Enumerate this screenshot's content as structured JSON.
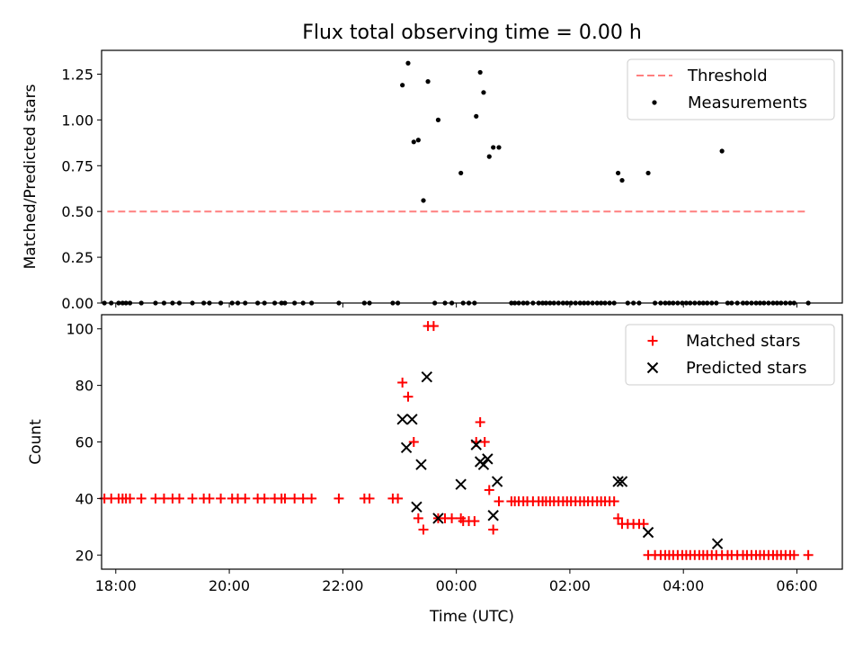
{
  "chart_data": [
    {
      "type": "scatter",
      "title": "Flux total observing time = 0.00 h",
      "xlabel": "",
      "ylabel": "Matched/Predicted stars",
      "xlim": [
        17.75,
        30.8
      ],
      "ylim": [
        0,
        1.38
      ],
      "yticks": [
        0,
        0.25,
        0.5,
        0.75,
        1.0,
        1.25
      ],
      "ytick_labels": [
        "0.00",
        "0.25",
        "0.50",
        "0.75",
        "1.00",
        "1.25"
      ],
      "legend": {
        "position": "top-right",
        "entries": [
          "Threshold",
          "Measurements"
        ]
      },
      "threshold": {
        "name": "Threshold",
        "value": 0.5,
        "x_range": [
          17.85,
          30.2
        ],
        "color": "#ff7f7f"
      },
      "series": [
        {
          "name": "Measurements",
          "color": "#000000",
          "points": [
            [
              17.8,
              0
            ],
            [
              17.92,
              0
            ],
            [
              18.05,
              0
            ],
            [
              18.12,
              0
            ],
            [
              18.18,
              0
            ],
            [
              18.25,
              0
            ],
            [
              18.45,
              0
            ],
            [
              18.7,
              0
            ],
            [
              18.85,
              0
            ],
            [
              19.0,
              0
            ],
            [
              19.12,
              0
            ],
            [
              19.35,
              0
            ],
            [
              19.55,
              0
            ],
            [
              19.65,
              0
            ],
            [
              19.85,
              0
            ],
            [
              20.05,
              0
            ],
            [
              20.15,
              0
            ],
            [
              20.28,
              0
            ],
            [
              20.5,
              0
            ],
            [
              20.62,
              0
            ],
            [
              20.8,
              0
            ],
            [
              20.92,
              0
            ],
            [
              20.98,
              0
            ],
            [
              21.15,
              0
            ],
            [
              21.3,
              0
            ],
            [
              21.45,
              0
            ],
            [
              21.93,
              0
            ],
            [
              22.38,
              0
            ],
            [
              22.47,
              0
            ],
            [
              22.88,
              0
            ],
            [
              22.97,
              0
            ],
            [
              23.05,
              1.19
            ],
            [
              23.15,
              1.31
            ],
            [
              23.25,
              0.88
            ],
            [
              23.33,
              0.89
            ],
            [
              23.42,
              0.56
            ],
            [
              23.5,
              1.21
            ],
            [
              23.62,
              0
            ],
            [
              23.68,
              1.0
            ],
            [
              23.8,
              0
            ],
            [
              23.92,
              0
            ],
            [
              24.08,
              0.71
            ],
            [
              24.12,
              0
            ],
            [
              24.22,
              0
            ],
            [
              24.32,
              0
            ],
            [
              24.35,
              1.02
            ],
            [
              24.42,
              1.26
            ],
            [
              24.48,
              1.15
            ],
            [
              24.58,
              0.8
            ],
            [
              24.65,
              0.85
            ],
            [
              24.75,
              0.85
            ],
            [
              24.97,
              0
            ],
            [
              25.03,
              0
            ],
            [
              25.1,
              0
            ],
            [
              25.18,
              0
            ],
            [
              25.25,
              0
            ],
            [
              25.35,
              0
            ],
            [
              25.45,
              0
            ],
            [
              25.52,
              0
            ],
            [
              25.58,
              0
            ],
            [
              25.65,
              0
            ],
            [
              25.72,
              0
            ],
            [
              25.8,
              0
            ],
            [
              25.88,
              0
            ],
            [
              25.95,
              0
            ],
            [
              26.02,
              0
            ],
            [
              26.1,
              0
            ],
            [
              26.18,
              0
            ],
            [
              26.25,
              0
            ],
            [
              26.32,
              0
            ],
            [
              26.4,
              0
            ],
            [
              26.48,
              0
            ],
            [
              26.55,
              0
            ],
            [
              26.62,
              0
            ],
            [
              26.7,
              0
            ],
            [
              26.78,
              0
            ],
            [
              26.85,
              0.71
            ],
            [
              26.92,
              0.67
            ],
            [
              27.02,
              0
            ],
            [
              27.12,
              0
            ],
            [
              27.22,
              0
            ],
            [
              27.38,
              0.71
            ],
            [
              27.5,
              0
            ],
            [
              27.6,
              0
            ],
            [
              27.68,
              0
            ],
            [
              27.75,
              0
            ],
            [
              27.82,
              0
            ],
            [
              27.9,
              0
            ],
            [
              27.98,
              0
            ],
            [
              28.05,
              0
            ],
            [
              28.12,
              0
            ],
            [
              28.2,
              0
            ],
            [
              28.28,
              0
            ],
            [
              28.35,
              0
            ],
            [
              28.42,
              0
            ],
            [
              28.5,
              0
            ],
            [
              28.58,
              0
            ],
            [
              28.68,
              0.83
            ],
            [
              28.78,
              0
            ],
            [
              28.85,
              0
            ],
            [
              28.95,
              0
            ],
            [
              29.05,
              0
            ],
            [
              29.12,
              0
            ],
            [
              29.2,
              0
            ],
            [
              29.28,
              0
            ],
            [
              29.35,
              0
            ],
            [
              29.42,
              0
            ],
            [
              29.5,
              0
            ],
            [
              29.58,
              0
            ],
            [
              29.65,
              0
            ],
            [
              29.72,
              0
            ],
            [
              29.8,
              0
            ],
            [
              29.88,
              0
            ],
            [
              29.95,
              0
            ],
            [
              30.2,
              0
            ]
          ]
        }
      ]
    },
    {
      "type": "scatter",
      "title": "",
      "xlabel": "Time (UTC)",
      "ylabel": "Count",
      "xlim": [
        17.75,
        30.8
      ],
      "ylim": [
        15,
        105
      ],
      "xticks": [
        18,
        20,
        22,
        24,
        26,
        28,
        30
      ],
      "xtick_labels": [
        "18:00",
        "20:00",
        "22:00",
        "00:00",
        "02:00",
        "04:00",
        "06:00"
      ],
      "yticks": [
        20,
        40,
        60,
        80,
        100
      ],
      "ytick_labels": [
        "20",
        "40",
        "60",
        "80",
        "100"
      ],
      "legend": {
        "position": "top-right",
        "entries": [
          "Matched stars",
          "Predicted stars"
        ]
      },
      "series": [
        {
          "name": "Matched stars",
          "marker": "plus",
          "color": "#ff0000",
          "points": [
            [
              17.8,
              40
            ],
            [
              17.92,
              40
            ],
            [
              18.05,
              40
            ],
            [
              18.12,
              40
            ],
            [
              18.18,
              40
            ],
            [
              18.25,
              40
            ],
            [
              18.45,
              40
            ],
            [
              18.7,
              40
            ],
            [
              18.85,
              40
            ],
            [
              19.0,
              40
            ],
            [
              19.12,
              40
            ],
            [
              19.35,
              40
            ],
            [
              19.55,
              40
            ],
            [
              19.65,
              40
            ],
            [
              19.85,
              40
            ],
            [
              20.05,
              40
            ],
            [
              20.15,
              40
            ],
            [
              20.28,
              40
            ],
            [
              20.5,
              40
            ],
            [
              20.62,
              40
            ],
            [
              20.8,
              40
            ],
            [
              20.92,
              40
            ],
            [
              20.98,
              40
            ],
            [
              21.15,
              40
            ],
            [
              21.3,
              40
            ],
            [
              21.45,
              40
            ],
            [
              21.93,
              40
            ],
            [
              22.38,
              40
            ],
            [
              22.47,
              40
            ],
            [
              22.88,
              40
            ],
            [
              22.97,
              40
            ],
            [
              23.05,
              81
            ],
            [
              23.15,
              76
            ],
            [
              23.25,
              60
            ],
            [
              23.33,
              33
            ],
            [
              23.42,
              29
            ],
            [
              23.5,
              101
            ],
            [
              23.6,
              101
            ],
            [
              23.68,
              33
            ],
            [
              23.8,
              33
            ],
            [
              23.92,
              33
            ],
            [
              24.08,
              33
            ],
            [
              24.12,
              32
            ],
            [
              24.22,
              32
            ],
            [
              24.32,
              32
            ],
            [
              24.35,
              60
            ],
            [
              24.42,
              67
            ],
            [
              24.5,
              60
            ],
            [
              24.58,
              43
            ],
            [
              24.65,
              29
            ],
            [
              24.75,
              39
            ],
            [
              24.97,
              39
            ],
            [
              25.03,
              39
            ],
            [
              25.1,
              39
            ],
            [
              25.18,
              39
            ],
            [
              25.25,
              39
            ],
            [
              25.35,
              39
            ],
            [
              25.45,
              39
            ],
            [
              25.52,
              39
            ],
            [
              25.58,
              39
            ],
            [
              25.65,
              39
            ],
            [
              25.72,
              39
            ],
            [
              25.8,
              39
            ],
            [
              25.88,
              39
            ],
            [
              25.95,
              39
            ],
            [
              26.02,
              39
            ],
            [
              26.1,
              39
            ],
            [
              26.18,
              39
            ],
            [
              26.25,
              39
            ],
            [
              26.32,
              39
            ],
            [
              26.4,
              39
            ],
            [
              26.48,
              39
            ],
            [
              26.55,
              39
            ],
            [
              26.62,
              39
            ],
            [
              26.7,
              39
            ],
            [
              26.78,
              39
            ],
            [
              26.85,
              33
            ],
            [
              26.92,
              31
            ],
            [
              27.02,
              31
            ],
            [
              27.12,
              31
            ],
            [
              27.22,
              31
            ],
            [
              27.3,
              31
            ],
            [
              27.38,
              20
            ],
            [
              27.5,
              20
            ],
            [
              27.6,
              20
            ],
            [
              27.68,
              20
            ],
            [
              27.75,
              20
            ],
            [
              27.82,
              20
            ],
            [
              27.9,
              20
            ],
            [
              27.98,
              20
            ],
            [
              28.05,
              20
            ],
            [
              28.12,
              20
            ],
            [
              28.2,
              20
            ],
            [
              28.28,
              20
            ],
            [
              28.35,
              20
            ],
            [
              28.42,
              20
            ],
            [
              28.5,
              20
            ],
            [
              28.58,
              20
            ],
            [
              28.68,
              20
            ],
            [
              28.78,
              20
            ],
            [
              28.85,
              20
            ],
            [
              28.95,
              20
            ],
            [
              29.05,
              20
            ],
            [
              29.12,
              20
            ],
            [
              29.2,
              20
            ],
            [
              29.28,
              20
            ],
            [
              29.35,
              20
            ],
            [
              29.42,
              20
            ],
            [
              29.5,
              20
            ],
            [
              29.58,
              20
            ],
            [
              29.65,
              20
            ],
            [
              29.72,
              20
            ],
            [
              29.8,
              20
            ],
            [
              29.88,
              20
            ],
            [
              29.95,
              20
            ],
            [
              30.2,
              20
            ]
          ]
        },
        {
          "name": "Predicted stars",
          "marker": "x",
          "color": "#000000",
          "points": [
            [
              23.05,
              68
            ],
            [
              23.12,
              58
            ],
            [
              23.22,
              68
            ],
            [
              23.3,
              37
            ],
            [
              23.38,
              52
            ],
            [
              23.48,
              83
            ],
            [
              23.68,
              33
            ],
            [
              24.08,
              45
            ],
            [
              24.35,
              59
            ],
            [
              24.42,
              53
            ],
            [
              24.48,
              52
            ],
            [
              24.55,
              54
            ],
            [
              24.65,
              34
            ],
            [
              24.72,
              46
            ],
            [
              26.85,
              46
            ],
            [
              26.92,
              46
            ],
            [
              27.38,
              28
            ],
            [
              28.6,
              24
            ]
          ]
        }
      ]
    }
  ]
}
